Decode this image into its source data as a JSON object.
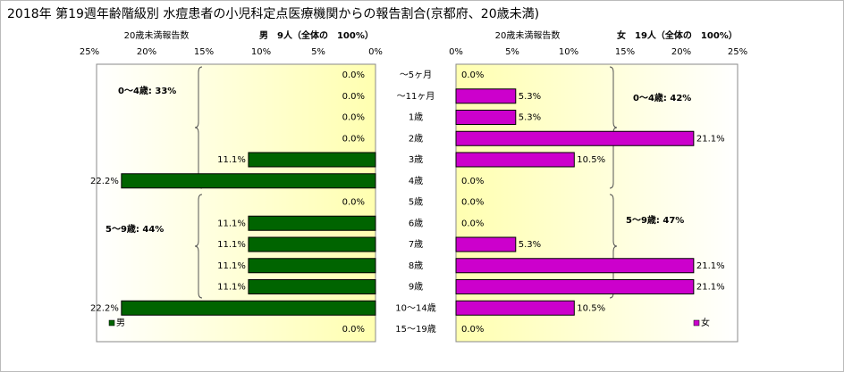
{
  "title": "2018年 第19週年齢階級別 水痘患者の小児科定点医療機関からの報告割合(京都府、20歳未満)",
  "chart_data": [
    {
      "type": "bar",
      "orientation": "horizontal",
      "direction": "left",
      "axis_label": "20歳未満報告数",
      "subtitle": "男　9人（全体の　100%）",
      "categories": [
        "～5ヶ月",
        "～11ヶ月",
        "1歳",
        "2歳",
        "3歳",
        "4歳",
        "5歳",
        "6歳",
        "7歳",
        "8歳",
        "9歳",
        "10～14歳",
        "15～19歳"
      ],
      "series": [
        {
          "name": "男",
          "color": "#006400",
          "values": [
            0,
            0,
            0,
            0,
            11.1,
            22.2,
            0,
            11.1,
            11.1,
            11.1,
            11.1,
            22.2,
            0
          ],
          "value_labels": [
            "0.0%",
            "0.0%",
            "0.0%",
            "0.0%",
            "11.1%",
            "22.2%",
            "0.0%",
            "11.1%",
            "11.1%",
            "11.1%",
            "11.1%",
            "22.2%",
            "0.0%"
          ]
        }
      ],
      "xlim": [
        0,
        25
      ],
      "xticks": [
        {
          "value": 25,
          "label": "25%"
        },
        {
          "value": 20,
          "label": "20%"
        },
        {
          "value": 15,
          "label": "15%"
        },
        {
          "value": 10,
          "label": "10%"
        },
        {
          "value": 5,
          "label": "5%"
        },
        {
          "value": 0,
          "label": "0%"
        }
      ],
      "annotations": [
        "0～4歳: 33%",
        "5～9歳: 44%"
      ],
      "legend": "bottom-left"
    },
    {
      "type": "bar",
      "orientation": "horizontal",
      "direction": "right",
      "axis_label": "20歳未満報告数",
      "subtitle": "女　19人（全体の　100%）",
      "series": [
        {
          "name": "女",
          "color": "#cc00cc",
          "values": [
            0,
            5.3,
            5.3,
            21.1,
            10.5,
            0,
            0,
            0,
            5.3,
            21.1,
            21.1,
            10.5,
            0
          ],
          "value_labels": [
            "0.0%",
            "5.3%",
            "5.3%",
            "21.1%",
            "10.5%",
            "0.0%",
            "0.0%",
            "0.0%",
            "5.3%",
            "21.1%",
            "21.1%",
            "10.5%",
            "0.0%"
          ]
        }
      ],
      "xlim": [
        0,
        25
      ],
      "xticks": [
        {
          "value": 0,
          "label": "0%"
        },
        {
          "value": 5,
          "label": "5%"
        },
        {
          "value": 10,
          "label": "10%"
        },
        {
          "value": 15,
          "label": "15%"
        },
        {
          "value": 20,
          "label": "20%"
        },
        {
          "value": 25,
          "label": "25%"
        }
      ],
      "annotations": [
        "0～4歳: 42%",
        "5～9歳: 47%"
      ],
      "legend": "bottom-right"
    }
  ]
}
